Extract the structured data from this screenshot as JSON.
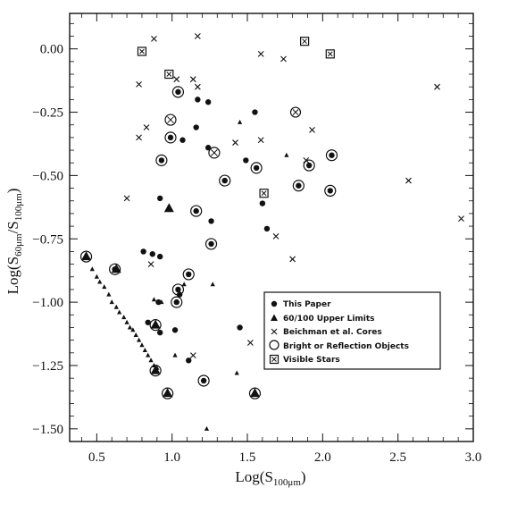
{
  "chart_data": {
    "type": "scatter",
    "xlabel_main": "Log(S",
    "xlabel_sub": "100μm",
    "xlabel_end": ")",
    "ylabel_main": "Log(S",
    "ylabel_sub1": "60μm",
    "ylabel_mid": "/S",
    "ylabel_sub2": "100μm",
    "ylabel_end": ")",
    "xlim": [
      0.32,
      3.0
    ],
    "ylim": [
      -1.55,
      0.14
    ],
    "x_ticks": [
      {
        "value": 0.5,
        "label": "0.5"
      },
      {
        "value": 1.0,
        "label": "1.0"
      },
      {
        "value": 1.5,
        "label": "1.5"
      },
      {
        "value": 2.0,
        "label": "2.0"
      },
      {
        "value": 2.5,
        "label": "2.5"
      },
      {
        "value": 3.0,
        "label": "3.0"
      }
    ],
    "y_ticks": [
      {
        "value": 0.0,
        "label": "0.00"
      },
      {
        "value": -0.25,
        "label": "−0.25"
      },
      {
        "value": -0.5,
        "label": "−0.50"
      },
      {
        "value": -0.75,
        "label": "−0.75"
      },
      {
        "value": -1.0,
        "label": "−1.00"
      },
      {
        "value": -1.25,
        "label": "−1.25"
      },
      {
        "value": -1.5,
        "label": "−1.50"
      }
    ],
    "legend": {
      "placement": "lower-right",
      "entries": [
        {
          "marker": "dot",
          "label": "This Paper"
        },
        {
          "marker": "triangle",
          "label": "60/100 Upper Limits"
        },
        {
          "marker": "cross",
          "label": "Beichman et al. Cores"
        },
        {
          "marker": "circle",
          "label": "Bright or Reflection Objects"
        },
        {
          "marker": "square",
          "label": "Visible Stars"
        }
      ]
    },
    "series": [
      {
        "marker": "dot",
        "points": [
          [
            1.04,
            -0.17
          ],
          [
            1.17,
            -0.2
          ],
          [
            1.24,
            -0.21
          ],
          [
            1.55,
            -0.25
          ],
          [
            1.16,
            -0.31
          ],
          [
            0.99,
            -0.35
          ],
          [
            1.07,
            -0.36
          ],
          [
            1.24,
            -0.39
          ],
          [
            0.93,
            -0.44
          ],
          [
            1.49,
            -0.44
          ],
          [
            1.56,
            -0.47
          ],
          [
            1.91,
            -0.46
          ],
          [
            2.06,
            -0.42
          ],
          [
            1.35,
            -0.52
          ],
          [
            1.84,
            -0.54
          ],
          [
            2.05,
            -0.56
          ],
          [
            0.92,
            -0.59
          ],
          [
            1.26,
            -0.68
          ],
          [
            1.16,
            -0.64
          ],
          [
            1.6,
            -0.61
          ],
          [
            1.63,
            -0.71
          ],
          [
            1.26,
            -0.77
          ],
          [
            0.81,
            -0.8
          ],
          [
            0.87,
            -0.81
          ],
          [
            0.92,
            -0.82
          ],
          [
            0.62,
            -0.87
          ],
          [
            1.11,
            -0.89
          ],
          [
            1.04,
            -0.95
          ],
          [
            1.03,
            -1.0
          ],
          [
            1.05,
            -0.97
          ],
          [
            0.91,
            -1.0
          ],
          [
            0.84,
            -1.08
          ],
          [
            0.92,
            -1.12
          ],
          [
            1.02,
            -1.11
          ],
          [
            1.45,
            -1.1
          ],
          [
            1.11,
            -1.23
          ],
          [
            1.21,
            -1.31
          ]
        ]
      },
      {
        "marker": "triangle-large",
        "points": [
          [
            0.43,
            -0.82
          ],
          [
            0.63,
            -0.87
          ],
          [
            0.89,
            -1.09
          ],
          [
            0.89,
            -1.27
          ],
          [
            0.98,
            -0.63
          ],
          [
            0.97,
            -1.36
          ],
          [
            1.55,
            -1.36
          ]
        ]
      },
      {
        "marker": "triangle-small",
        "points": [
          [
            0.47,
            -0.87
          ],
          [
            0.5,
            -0.9
          ],
          [
            0.52,
            -0.92
          ],
          [
            0.55,
            -0.94
          ],
          [
            0.58,
            -0.97
          ],
          [
            0.6,
            -1.0
          ],
          [
            0.63,
            -1.02
          ],
          [
            0.65,
            -1.04
          ],
          [
            0.68,
            -1.06
          ],
          [
            0.7,
            -1.08
          ],
          [
            0.72,
            -1.1
          ],
          [
            0.74,
            -1.11
          ],
          [
            0.76,
            -1.13
          ],
          [
            0.78,
            -1.15
          ],
          [
            0.8,
            -1.17
          ],
          [
            0.82,
            -1.19
          ],
          [
            0.84,
            -1.21
          ],
          [
            0.86,
            -1.23
          ],
          [
            0.88,
            -1.25
          ],
          [
            0.9,
            -1.26
          ],
          [
            0.93,
            -1.0
          ],
          [
            1.08,
            -0.93
          ],
          [
            1.27,
            -0.93
          ],
          [
            0.88,
            -0.99
          ],
          [
            1.02,
            -1.21
          ],
          [
            1.23,
            -1.5
          ],
          [
            1.43,
            -1.28
          ],
          [
            1.45,
            -0.29
          ],
          [
            1.76,
            -0.42
          ]
        ]
      },
      {
        "marker": "cross",
        "points": [
          [
            0.88,
            0.04
          ],
          [
            1.17,
            0.05
          ],
          [
            1.59,
            -0.02
          ],
          [
            1.74,
            -0.04
          ],
          [
            2.76,
            -0.15
          ],
          [
            0.78,
            -0.14
          ],
          [
            1.03,
            -0.12
          ],
          [
            1.14,
            -0.12
          ],
          [
            1.17,
            -0.15
          ],
          [
            0.83,
            -0.31
          ],
          [
            0.78,
            -0.35
          ],
          [
            1.59,
            -0.36
          ],
          [
            1.42,
            -0.37
          ],
          [
            1.93,
            -0.32
          ],
          [
            1.89,
            -0.44
          ],
          [
            0.7,
            -0.59
          ],
          [
            2.57,
            -0.52
          ],
          [
            2.92,
            -0.67
          ],
          [
            1.69,
            -0.74
          ],
          [
            1.8,
            -0.83
          ],
          [
            0.86,
            -0.85
          ],
          [
            1.14,
            -1.21
          ],
          [
            1.52,
            -1.16
          ]
        ]
      },
      {
        "marker": "circle-plain",
        "points": [
          [
            1.82,
            -0.25
          ]
        ]
      },
      {
        "marker": "circle-cross",
        "points": [
          [
            0.99,
            -0.28
          ],
          [
            1.28,
            -0.41
          ]
        ]
      },
      {
        "marker": "circle-dot",
        "points": [
          [
            1.04,
            -0.17
          ],
          [
            0.99,
            -0.35
          ],
          [
            0.93,
            -0.44
          ],
          [
            1.56,
            -0.47
          ],
          [
            1.91,
            -0.46
          ],
          [
            2.06,
            -0.42
          ],
          [
            1.35,
            -0.52
          ],
          [
            1.84,
            -0.54
          ],
          [
            2.05,
            -0.56
          ],
          [
            1.16,
            -0.64
          ],
          [
            1.26,
            -0.77
          ],
          [
            0.62,
            -0.87
          ],
          [
            1.11,
            -0.89
          ],
          [
            1.04,
            -0.95
          ],
          [
            1.03,
            -1.0
          ],
          [
            1.21,
            -1.31
          ]
        ]
      },
      {
        "marker": "circle-triangle",
        "points": [
          [
            0.43,
            -0.82
          ],
          [
            0.89,
            -1.09
          ],
          [
            0.89,
            -1.27
          ],
          [
            0.97,
            -1.36
          ],
          [
            1.55,
            -1.36
          ]
        ]
      },
      {
        "marker": "square-cross",
        "points": [
          [
            1.88,
            0.03
          ],
          [
            0.8,
            -0.01
          ],
          [
            2.05,
            -0.02
          ],
          [
            0.98,
            -0.1
          ],
          [
            1.61,
            -0.57
          ]
        ]
      }
    ]
  }
}
